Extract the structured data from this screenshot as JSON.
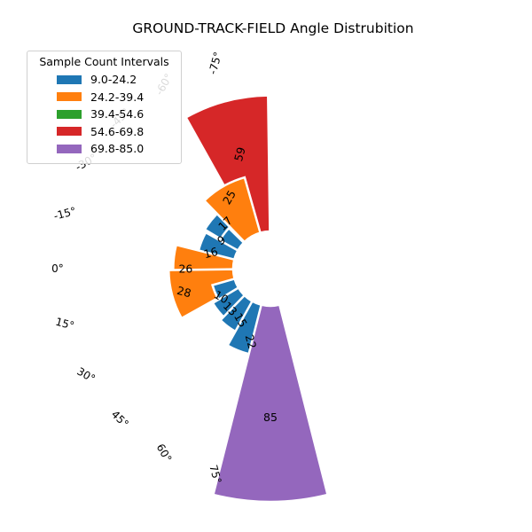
{
  "chart_data": {
    "type": "bar",
    "subtype": "polar-bar",
    "title": "GROUND-TRACK-FIELD Angle Distrubition",
    "angle_labels": [
      "-75°",
      "-60°",
      "-45°",
      "-30°",
      "-15°",
      "0°",
      "15°",
      "30°",
      "45°",
      "60°",
      "75°"
    ],
    "bars": [
      {
        "angle": -45,
        "value": 17
      },
      {
        "angle": -30,
        "value": 9
      },
      {
        "angle": -15,
        "value": 16
      },
      {
        "angle": 0,
        "value": 26
      },
      {
        "angle": 15,
        "value": 28
      },
      {
        "angle": 30,
        "value": 10
      },
      {
        "angle": 45,
        "value": 13
      },
      {
        "angle": 60,
        "value": 15
      },
      {
        "angle": 75,
        "value": 22
      },
      {
        "angle": 90,
        "value": 85
      },
      {
        "angle": -75,
        "value": 59
      },
      {
        "angle": -60,
        "value": 25
      }
    ],
    "legend": {
      "title": "Sample Count Intervals",
      "placement": "top-left",
      "items": [
        {
          "label": "9.0-24.2",
          "color": "#1f77b4",
          "min": 9.0,
          "max": 24.2
        },
        {
          "label": "24.2-39.4",
          "color": "#ff7f0e",
          "min": 24.2,
          "max": 39.4
        },
        {
          "label": "39.4-54.6",
          "color": "#2ca02c",
          "min": 39.4,
          "max": 54.6
        },
        {
          "label": "54.6-69.8",
          "color": "#d62728",
          "min": 54.6,
          "max": 69.8
        },
        {
          "label": "69.8-85.0",
          "color": "#9467bd",
          "min": 69.8,
          "max": 85.0
        }
      ]
    },
    "grid": false
  }
}
